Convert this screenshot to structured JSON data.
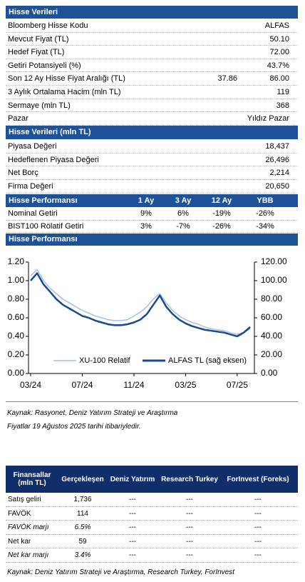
{
  "stock_data": {
    "title": "Hisse Verileri",
    "rows": [
      [
        "Bloomberg Hisse Kodu",
        "ALFAS"
      ],
      [
        "Mevcut Fiyat (TL)",
        "50.10"
      ],
      [
        "Hedef Fiyat (TL)",
        "72.00"
      ],
      [
        "Getiri Potansiyeli (%)",
        "43.7%"
      ],
      [
        "Son 12 Ay Hisse Fiyat Aralığı (TL)",
        "37.86",
        "86.00"
      ],
      [
        "3 Aylık Ortalama Hacim (mln TL)",
        "119"
      ],
      [
        "Sermaye (mln TL)",
        "368"
      ],
      [
        "Pazar",
        "Yıldız Pazar"
      ]
    ]
  },
  "market_data": {
    "title": "Hisse Verileri (mln TL)",
    "rows": [
      [
        "Piyasa Değeri",
        "18,437"
      ],
      [
        "Hedeflenen Piyasa Değeri",
        "26,496"
      ],
      [
        "Net Borç",
        "2,214"
      ],
      [
        "Firma Değeri",
        "20,650"
      ]
    ]
  },
  "performance": {
    "title": "Hisse Performansı",
    "columns": [
      "1 Ay",
      "3 Ay",
      "12 Ay",
      "YBB"
    ],
    "rows": [
      [
        "Nominal Getiri",
        "9%",
        "6%",
        "-19%",
        "-26%"
      ],
      [
        "BIST100 Rölatif Getiri",
        "3%",
        "-7%",
        "-26%",
        "-34%"
      ]
    ]
  },
  "chart_data": {
    "type": "line",
    "title": "Hisse Performansı",
    "categories": [
      "03/24",
      null,
      null,
      null,
      null,
      null,
      null,
      null,
      "07/24",
      null,
      null,
      null,
      null,
      null,
      null,
      null,
      "11/24",
      null,
      null,
      null,
      null,
      null,
      null,
      null,
      "03/25",
      null,
      null,
      null,
      null,
      null,
      null,
      null,
      "07/25",
      null,
      null
    ],
    "ylim": [
      0,
      1.2
    ],
    "yticks": [
      {
        "value": 0,
        "label": "0.00"
      },
      {
        "value": 0.2,
        "label": "0.20"
      },
      {
        "value": 0.4,
        "label": "0.40"
      },
      {
        "value": 0.6,
        "label": "0.60"
      },
      {
        "value": 0.8,
        "label": "0.80"
      },
      {
        "value": 1,
        "label": "1.00"
      },
      {
        "value": 1.2,
        "label": "1.20"
      }
    ],
    "y2lim": [
      0,
      120
    ],
    "y2ticks": [
      {
        "value": 0,
        "label": "0.00"
      },
      {
        "value": 20,
        "label": "20.00"
      },
      {
        "value": 40,
        "label": "40.00"
      },
      {
        "value": 60,
        "label": "60.00"
      },
      {
        "value": 80,
        "label": "80.00"
      },
      {
        "value": 100,
        "label": "100.00"
      },
      {
        "value": 120,
        "label": "120.00"
      }
    ],
    "series": [
      {
        "name": "XU-100 Relatif",
        "color": "#a3c2e6",
        "values": [
          1.05,
          1.12,
          1.0,
          0.92,
          0.86,
          0.8,
          0.76,
          0.72,
          0.68,
          0.65,
          0.62,
          0.6,
          0.58,
          0.57,
          0.57,
          0.58,
          0.62,
          0.66,
          0.72,
          0.8,
          0.86,
          0.76,
          0.68,
          0.62,
          0.58,
          0.55,
          0.53,
          0.5,
          0.48,
          0.47,
          0.46,
          0.44,
          0.42,
          0.44,
          0.48
        ]
      },
      {
        "name": "ALFAS TL (sağ eksen)",
        "color": "#1b4a8a",
        "axis": "y2",
        "values": [
          100,
          108,
          96,
          88,
          80,
          74,
          70,
          66,
          62,
          60,
          57,
          55,
          53,
          52,
          52,
          53,
          55,
          58,
          64,
          74,
          84,
          72,
          64,
          58,
          54,
          51,
          49,
          47,
          46,
          45,
          44,
          42,
          40,
          44,
          50
        ]
      }
    ]
  },
  "notes": [
    "Kaynak: Rasyonet, Deniz Yatırım Strateji ve Araştırma",
    "Fiyatlar 19 Ağustos 2025 tarihi itibariyledir."
  ],
  "financials": {
    "columns": [
      "Finansallar (mln TL)",
      "Gerçekleşen",
      "Deniz Yatırım",
      "Research Turkey",
      "ForInvest (Foreks)"
    ],
    "rows": [
      [
        "Satış geliri",
        "1,736",
        "---",
        "---",
        "---"
      ],
      [
        "FAVÖK",
        "114",
        "---",
        "---",
        "---"
      ],
      [
        "FAVÖK marjı",
        "6.5%",
        "---",
        "---",
        "---"
      ],
      [
        "Net kar",
        "59",
        "---",
        "---",
        "---"
      ],
      [
        "Net kar marjı",
        "3.4%",
        "---",
        "---",
        "---"
      ]
    ]
  },
  "source": "Kaynak: Deniz Yatırım Strateji ve Araştırma, Research Turkey, ForInvest"
}
